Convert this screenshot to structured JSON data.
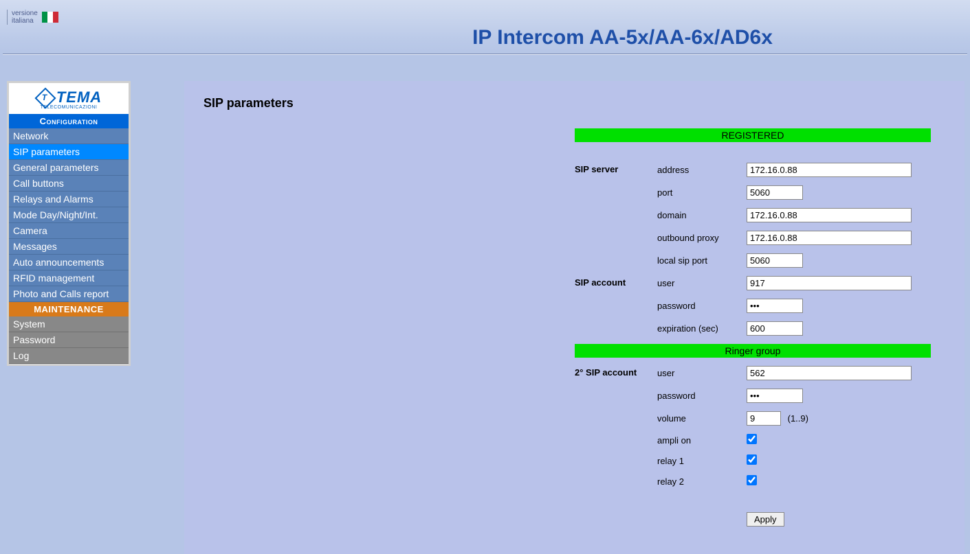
{
  "lang_link": {
    "line1": "versione",
    "line2": "italiana"
  },
  "page_title": "IP Intercom AA-5x/AA-6x/AD6x",
  "colors": {
    "page_bg_top": "#d2dcf0",
    "content_bg": "#b9c2ea",
    "title_color": "#1e4fa8",
    "menu_config_bg": "#0066d8",
    "menu_maint_bg": "#d87a1a",
    "menu_item_bg": "#5a82b8",
    "menu_item_active_bg": "#0088ff",
    "menu_maint_item_bg": "#888888",
    "status_green": "#00e000"
  },
  "sidebar": {
    "logo_text": "TEMA",
    "logo_sub": "TELECOMUNICAZIONI",
    "config_header": "Configuration",
    "maint_header": "MAINTENANCE",
    "config_items": [
      "Network",
      "SIP parameters",
      "General parameters",
      "Call buttons",
      "Relays and Alarms",
      "Mode Day/Night/Int.",
      "Camera",
      "Messages",
      "Auto announcements",
      "RFID management",
      "Photo and Calls report"
    ],
    "active_index": 1,
    "maint_items": [
      "System",
      "Password",
      "Log"
    ]
  },
  "content": {
    "heading": "SIP parameters",
    "status_registered": "REGISTERED",
    "status_ringer": "Ringer group",
    "sections": {
      "sip_server": "SIP server",
      "sip_account": "SIP account",
      "second_sip_account": "2° SIP account"
    },
    "labels": {
      "address": "address",
      "port": "port",
      "domain": "domain",
      "outbound_proxy": "outbound proxy",
      "local_sip_port": "local sip port",
      "user": "user",
      "password": "password",
      "expiration": "expiration (sec)",
      "volume": "volume",
      "volume_hint": "(1..9)",
      "ampli_on": "ampli on",
      "relay1": "relay 1",
      "relay2": "relay 2"
    },
    "values": {
      "address": "172.16.0.88",
      "port": "5060",
      "domain": "172.16.0.88",
      "outbound_proxy": "172.16.0.88",
      "local_sip_port": "5060",
      "user": "917",
      "password": "•••",
      "expiration": "600",
      "user2": "562",
      "password2": "•••",
      "volume": "9",
      "ampli_on": true,
      "relay1": true,
      "relay2": true
    },
    "apply_label": "Apply"
  }
}
